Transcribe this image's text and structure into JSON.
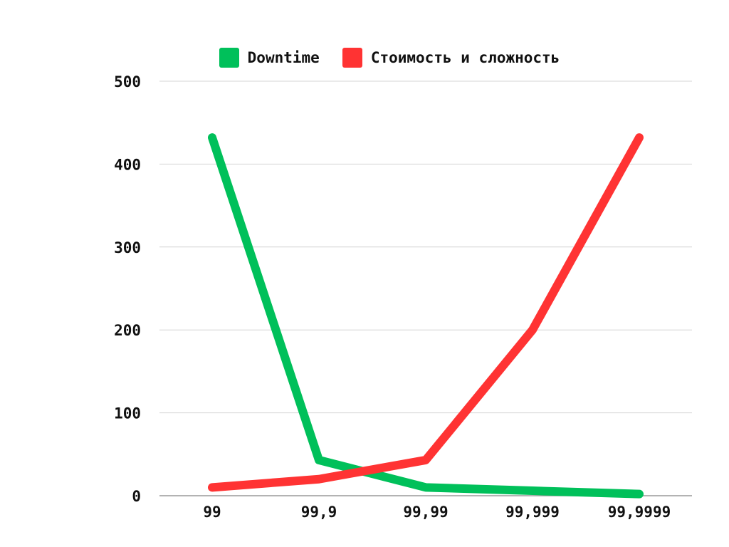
{
  "chart_data": {
    "type": "line",
    "categories": [
      "99",
      "99,9",
      "99,99",
      "99,999",
      "99,9999"
    ],
    "series": [
      {
        "name": "Downtime",
        "color": "#00c05a",
        "values": [
          432,
          43,
          10,
          6,
          2
        ]
      },
      {
        "name": "Стоимость и сложность",
        "color": "#ff3333",
        "values": [
          10,
          20,
          43,
          200,
          432
        ]
      }
    ],
    "y_ticks": [
      "0",
      "100",
      "200",
      "300",
      "400",
      "500"
    ],
    "ylim": [
      0,
      500
    ],
    "grid": true,
    "legend_position": "top-center"
  }
}
